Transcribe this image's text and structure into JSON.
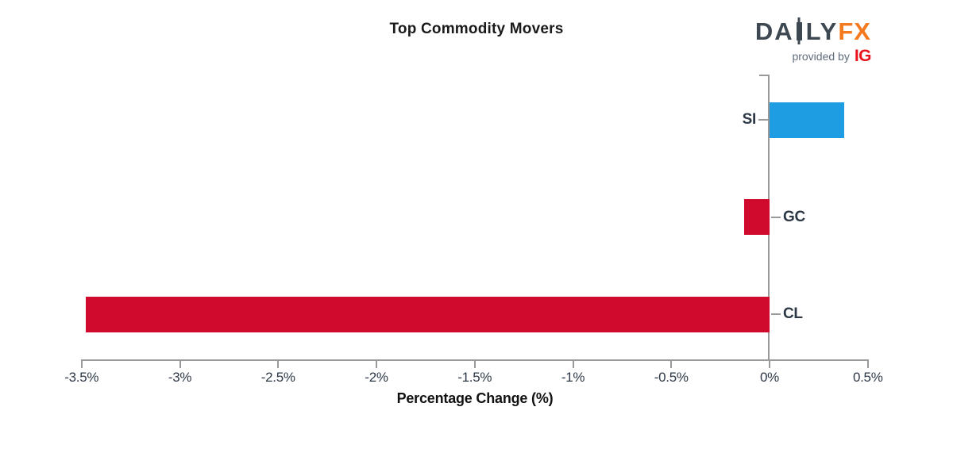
{
  "chart_data": {
    "type": "bar",
    "orientation": "horizontal",
    "title": "Top Commodity Movers",
    "xlabel": "Percentage Change (%)",
    "categories": [
      "SI",
      "GC",
      "CL"
    ],
    "values": [
      0.38,
      -0.13,
      -3.48
    ],
    "series": [
      {
        "name": "Percentage Change",
        "values": [
          0.38,
          -0.13,
          -3.48
        ]
      }
    ],
    "bar_colors": [
      "#1f9de3",
      "#d00a2c",
      "#d00a2c"
    ],
    "x_ticks": [
      -3.5,
      -3,
      -2.5,
      -2,
      -1.5,
      -1,
      -0.5,
      0,
      0.5
    ],
    "x_tick_labels": [
      "-3.5%",
      "-3%",
      "-2.5%",
      "-2%",
      "-1.5%",
      "-1%",
      "-0.5%",
      "0%",
      "0.5%"
    ],
    "xlim": [
      -3.5,
      0.5
    ],
    "grid": false,
    "legend": null
  },
  "logo": {
    "brand": "DAILYFX",
    "brand_left": "DA",
    "brand_right": "LY",
    "brand_suffix": "FX",
    "tagline": "provided by",
    "provider": "IG"
  },
  "colors": {
    "positive_bar": "#1f9de3",
    "negative_bar": "#d00a2c",
    "axis_gray": "#999999",
    "tick_label": "#2e3a49",
    "logo_navy": "#3d4853",
    "logo_orange": "#f5791d",
    "tagline_gray": "#5f6c7b",
    "ig_red": "#e8131c"
  }
}
